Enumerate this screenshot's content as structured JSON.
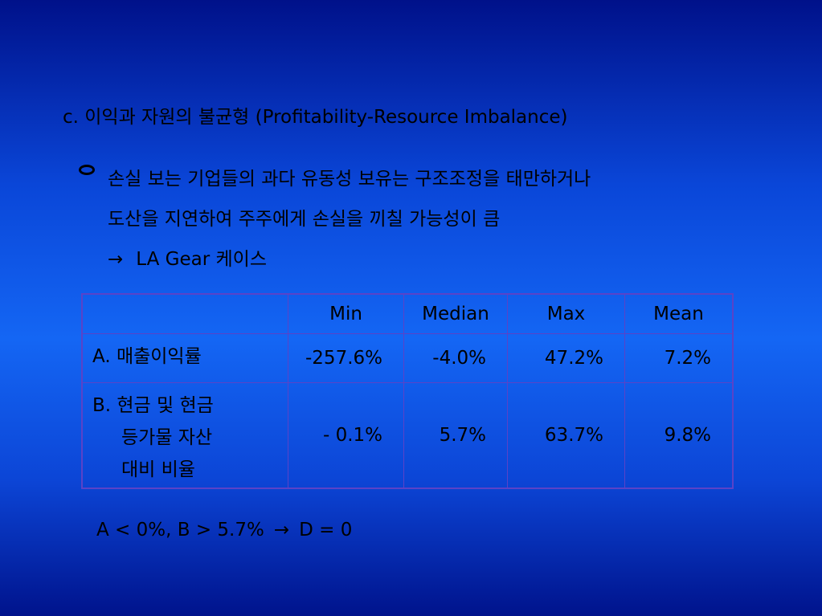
{
  "heading": "c. 이익과 자원의 불균형 (Profitability-Resource Imbalance)",
  "bullet": {
    "line1": "손실 보는 기업들의 과다 유동성 보유는 구조조정을 태만하거나",
    "line2": "도산을 지연하여 주주에게 손실을 끼칠 가능성이 큼"
  },
  "case_line": {
    "arrow": "→",
    "text": "LA Gear 케이스"
  },
  "table": {
    "headers": [
      "",
      "Min",
      "Median",
      "Max",
      "Mean"
    ],
    "rows": [
      {
        "label_lines": [
          "A. 매출이익률"
        ],
        "values": [
          "-257.6%",
          "-4.0%",
          "47.2%",
          "7.2%"
        ]
      },
      {
        "label_lines": [
          "B. 현금 및 현금",
          "등가물 자산",
          "대비 비율"
        ],
        "values": [
          "- 0.1%",
          "5.7%",
          "63.7%",
          "9.8%"
        ]
      }
    ]
  },
  "footer": {
    "condition": "A < 0%, B > 5.7%",
    "arrow": "→",
    "result": "D = 0"
  }
}
